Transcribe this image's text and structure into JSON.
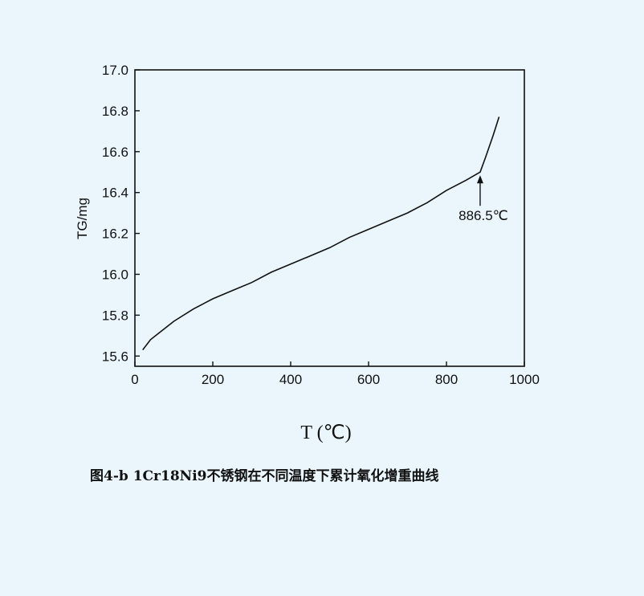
{
  "chart_data": {
    "type": "line",
    "xlabel": "T (℃)",
    "ylabel": "TG/mg",
    "xlim": [
      0,
      1000
    ],
    "ylim": [
      15.55,
      17.0
    ],
    "x_ticks": [
      "0",
      "200",
      "400",
      "600",
      "800",
      "1000"
    ],
    "y_ticks": [
      "15.6",
      "15.8",
      "16.0",
      "16.2",
      "16.4",
      "16.6",
      "16.8",
      "17.0"
    ],
    "grid": false,
    "legend": "none",
    "series": [
      {
        "x": [
          20,
          40,
          60,
          80,
          100,
          150,
          200,
          250,
          300,
          350,
          400,
          450,
          500,
          550,
          600,
          650,
          700,
          750,
          800,
          850,
          886.5,
          900,
          920,
          935
        ],
        "y": [
          15.63,
          15.68,
          15.71,
          15.74,
          15.77,
          15.83,
          15.88,
          15.92,
          15.96,
          16.01,
          16.05,
          16.09,
          16.13,
          16.18,
          16.22,
          16.26,
          16.3,
          16.35,
          16.41,
          16.46,
          16.5,
          16.57,
          16.68,
          16.77
        ]
      }
    ],
    "annotation": {
      "label": "886.5℃",
      "x": 886.5,
      "y": 16.5
    }
  },
  "caption": "图4-b 1Cr18Ni9不锈钢在不同温度下累计氧化增重曲线"
}
